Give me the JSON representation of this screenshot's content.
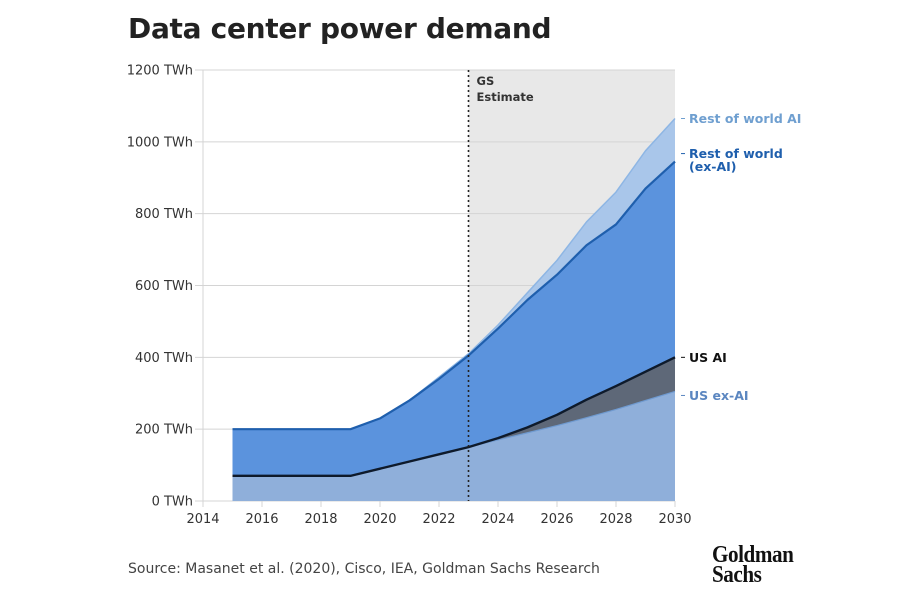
{
  "title": "Data center power demand",
  "source": "Source: Masanet et al. (2020), Cisco, IEA, Goldman Sachs Research",
  "logo": {
    "line1": "Goldman",
    "line2": "Sachs"
  },
  "chart_data": {
    "type": "area",
    "title": "Data center power demand",
    "xlabel": "",
    "ylabel": "",
    "x": [
      2015,
      2016,
      2017,
      2018,
      2019,
      2020,
      2021,
      2022,
      2023,
      2024,
      2025,
      2026,
      2027,
      2028,
      2029,
      2030
    ],
    "xlim": [
      2014,
      2030
    ],
    "ylim": [
      0,
      1200
    ],
    "y_unit": "TWh",
    "x_ticks": [
      "2014",
      "2016",
      "2018",
      "2020",
      "2022",
      "2024",
      "2026",
      "2028",
      "2030"
    ],
    "y_ticks": [
      "0 TWh",
      "200 TWh",
      "400 TWh",
      "600 TWh",
      "800 TWh",
      "1000 TWh",
      "1200 TWh"
    ],
    "grid": true,
    "stacked": true,
    "estimate_start": 2023,
    "estimate_label": [
      "GS",
      "Estimate"
    ],
    "series": [
      {
        "name": "US ex-AI",
        "label": "US ex-AI",
        "color": "#8FAFDA",
        "label_color": "#5B86C0",
        "values": [
          70,
          70,
          70,
          70,
          70,
          90,
          110,
          130,
          150,
          170,
          190,
          210,
          232,
          255,
          280,
          305
        ]
      },
      {
        "name": "US AI",
        "label": "US AI",
        "color": "#5E6878",
        "label_color": "#111111",
        "values": [
          0,
          0,
          0,
          0,
          0,
          0,
          0,
          0,
          0,
          5,
          15,
          30,
          50,
          65,
          80,
          95
        ]
      },
      {
        "name": "Rest of world (ex-AI)",
        "label": "Rest of world (ex-AI)",
        "color": "#5B93DD",
        "label_color": "#1F5FAD",
        "values": [
          130,
          130,
          130,
          130,
          130,
          140,
          170,
          210,
          255,
          305,
          355,
          390,
          430,
          450,
          510,
          545
        ]
      },
      {
        "name": "Rest of world AI",
        "label": "Rest of world AI",
        "color": "#A9C6EA",
        "label_color": "#6F9FD0",
        "values": [
          0,
          0,
          0,
          0,
          0,
          0,
          0,
          5,
          5,
          10,
          20,
          40,
          65,
          90,
          105,
          120
        ]
      }
    ],
    "totals_line": {
      "name": "US AI top",
      "values": [
        70,
        70,
        70,
        70,
        70,
        90,
        110,
        130,
        150,
        175,
        205,
        240,
        282,
        320,
        360,
        400
      ]
    }
  }
}
